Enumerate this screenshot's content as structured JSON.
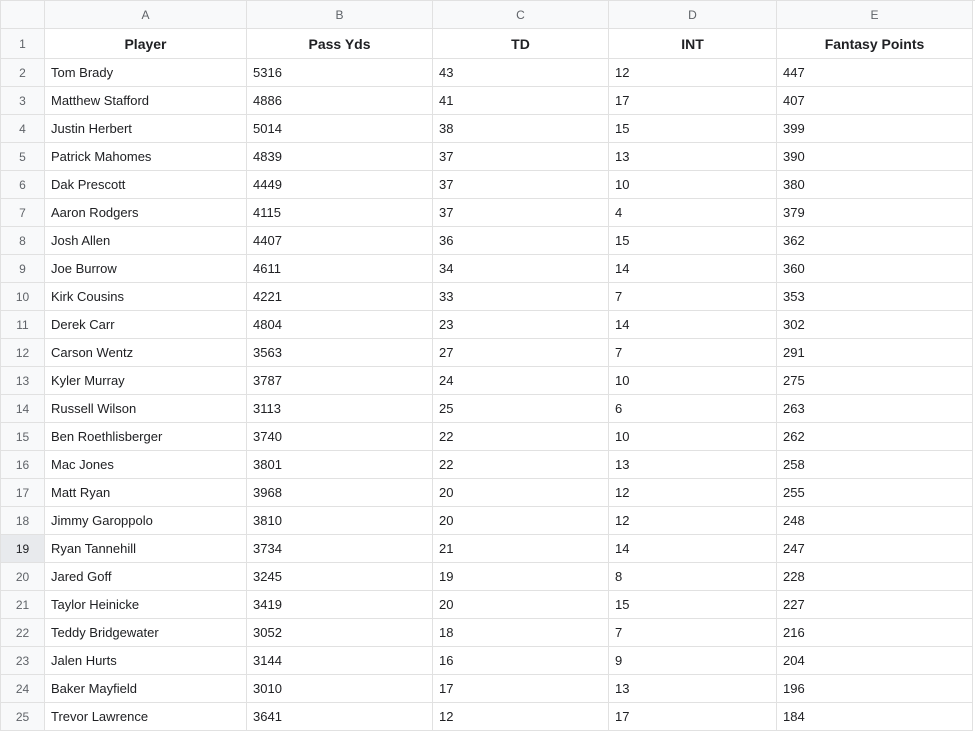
{
  "spreadsheet": {
    "columns": [
      {
        "letter": "A",
        "header": "Player"
      },
      {
        "letter": "B",
        "header": "Pass Yds"
      },
      {
        "letter": "C",
        "header": "TD"
      },
      {
        "letter": "D",
        "header": "INT"
      },
      {
        "letter": "E",
        "header": "Fantasy Points"
      }
    ],
    "selectedRow": 19,
    "rows": [
      {
        "n": 1,
        "cells": [
          "Player",
          "Pass Yds",
          "TD",
          "INT",
          "Fantasy Points"
        ],
        "isHeader": true
      },
      {
        "n": 2,
        "cells": [
          "Tom Brady",
          "5316",
          "43",
          "12",
          "447"
        ]
      },
      {
        "n": 3,
        "cells": [
          "Matthew Stafford",
          "4886",
          "41",
          "17",
          "407"
        ]
      },
      {
        "n": 4,
        "cells": [
          "Justin Herbert",
          "5014",
          "38",
          "15",
          "399"
        ]
      },
      {
        "n": 5,
        "cells": [
          "Patrick Mahomes",
          "4839",
          "37",
          "13",
          "390"
        ]
      },
      {
        "n": 6,
        "cells": [
          "Dak Prescott",
          "4449",
          "37",
          "10",
          "380"
        ]
      },
      {
        "n": 7,
        "cells": [
          "Aaron Rodgers",
          "4115",
          "37",
          "4",
          "379"
        ]
      },
      {
        "n": 8,
        "cells": [
          "Josh Allen",
          "4407",
          "36",
          "15",
          "362"
        ]
      },
      {
        "n": 9,
        "cells": [
          "Joe Burrow",
          "4611",
          "34",
          "14",
          "360"
        ]
      },
      {
        "n": 10,
        "cells": [
          "Kirk Cousins",
          "4221",
          "33",
          "7",
          "353"
        ]
      },
      {
        "n": 11,
        "cells": [
          "Derek Carr",
          "4804",
          "23",
          "14",
          "302"
        ]
      },
      {
        "n": 12,
        "cells": [
          "Carson Wentz",
          "3563",
          "27",
          "7",
          "291"
        ]
      },
      {
        "n": 13,
        "cells": [
          "Kyler Murray",
          "3787",
          "24",
          "10",
          "275"
        ]
      },
      {
        "n": 14,
        "cells": [
          "Russell Wilson",
          "3113",
          "25",
          "6",
          "263"
        ]
      },
      {
        "n": 15,
        "cells": [
          "Ben Roethlisberger",
          "3740",
          "22",
          "10",
          "262"
        ]
      },
      {
        "n": 16,
        "cells": [
          "Mac Jones",
          "3801",
          "22",
          "13",
          "258"
        ]
      },
      {
        "n": 17,
        "cells": [
          "Matt Ryan",
          "3968",
          "20",
          "12",
          "255"
        ]
      },
      {
        "n": 18,
        "cells": [
          "Jimmy Garoppolo",
          "3810",
          "20",
          "12",
          "248"
        ]
      },
      {
        "n": 19,
        "cells": [
          "Ryan Tannehill",
          "3734",
          "21",
          "14",
          "247"
        ]
      },
      {
        "n": 20,
        "cells": [
          "Jared Goff",
          "3245",
          "19",
          "8",
          "228"
        ]
      },
      {
        "n": 21,
        "cells": [
          "Taylor Heinicke",
          "3419",
          "20",
          "15",
          "227"
        ]
      },
      {
        "n": 22,
        "cells": [
          "Teddy Bridgewater",
          "3052",
          "18",
          "7",
          "216"
        ]
      },
      {
        "n": 23,
        "cells": [
          "Jalen Hurts",
          "3144",
          "16",
          "9",
          "204"
        ]
      },
      {
        "n": 24,
        "cells": [
          "Baker Mayfield",
          "3010",
          "17",
          "13",
          "196"
        ]
      },
      {
        "n": 25,
        "cells": [
          "Trevor Lawrence",
          "3641",
          "12",
          "17",
          "184"
        ]
      }
    ]
  }
}
